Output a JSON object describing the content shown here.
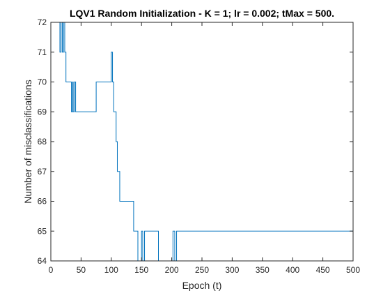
{
  "chart_data": {
    "type": "line",
    "title": "LQV1 Random Initialization - K = 1; lr = 0.002; tMax = 500.",
    "xlabel": "Epoch (t)",
    "ylabel": "Number of misclassifications",
    "xlim": [
      0,
      500
    ],
    "ylim": [
      64,
      72
    ],
    "xticks": [
      0,
      50,
      100,
      150,
      200,
      250,
      300,
      350,
      400,
      450,
      500
    ],
    "yticks": [
      64,
      65,
      66,
      67,
      68,
      69,
      70,
      71,
      72
    ],
    "grid": false,
    "line_color": "#0072BD",
    "step": true,
    "series": [
      {
        "x": [
          0,
          15,
          17,
          19,
          21,
          23,
          25,
          30,
          34,
          36,
          37,
          39,
          41,
          75,
          100,
          102,
          104,
          106,
          108,
          110,
          112,
          114,
          120,
          137,
          140,
          144,
          148,
          150,
          152,
          155,
          158,
          160,
          162,
          165,
          168,
          170,
          172,
          175,
          178,
          180,
          182,
          185,
          187,
          190,
          192,
          195,
          198,
          200,
          202,
          205,
          208,
          210,
          500
        ],
        "y": [
          72,
          71,
          72,
          71,
          72,
          71,
          70,
          70,
          69,
          70,
          69,
          70,
          69,
          70,
          71,
          70,
          69,
          69,
          68,
          67,
          67,
          66,
          66,
          65,
          65,
          64,
          64,
          65,
          64,
          65,
          65,
          65,
          65,
          65,
          65,
          65,
          65,
          65,
          64,
          64,
          64,
          64,
          64,
          64,
          64,
          64,
          64,
          64,
          65,
          64,
          65,
          65,
          65
        ]
      }
    ]
  }
}
